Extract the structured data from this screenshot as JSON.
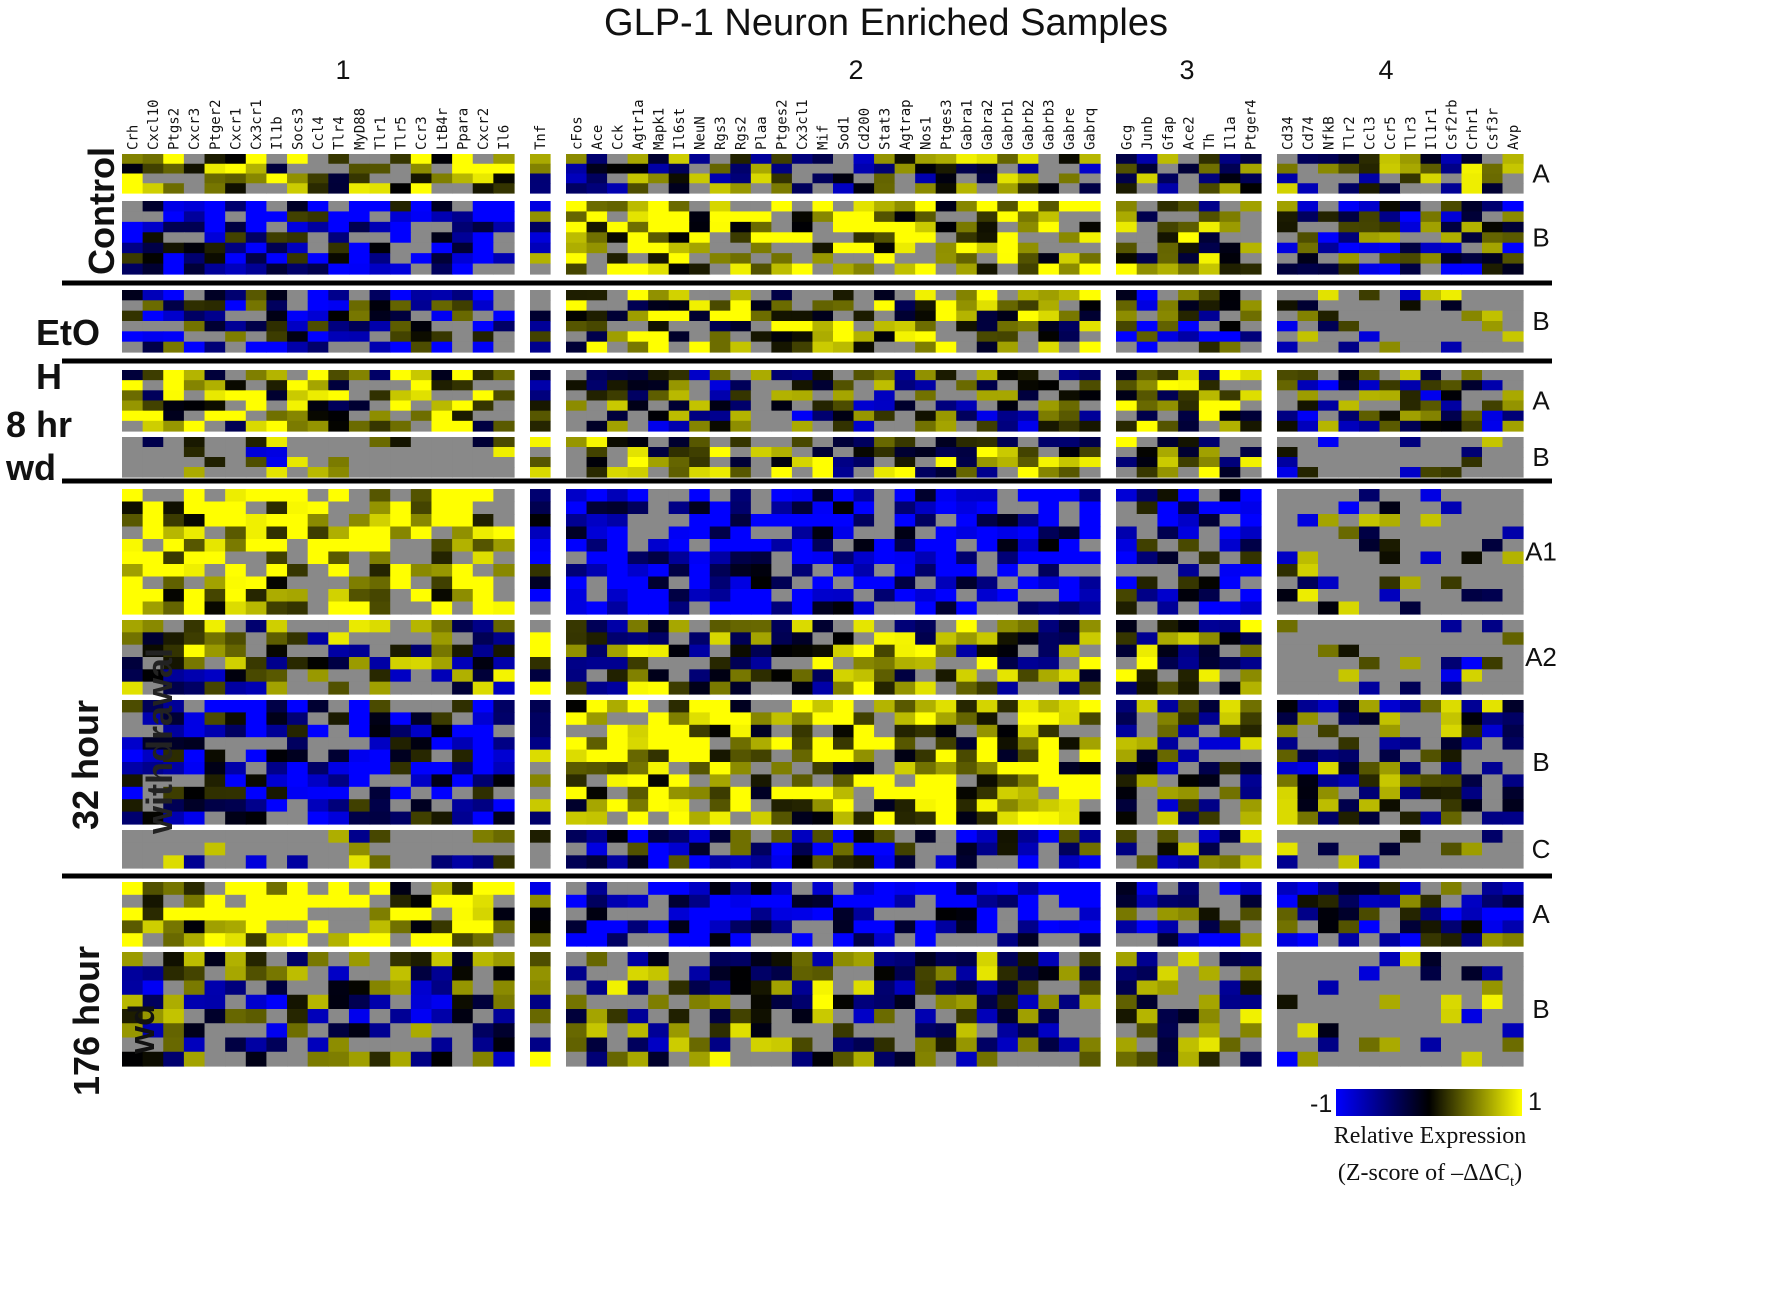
{
  "title": "GLP-1 Neuron Enriched Samples",
  "colors": {
    "low": "#0000ff",
    "mid": "#000000",
    "high": "#ffff00",
    "missing": "#898989"
  },
  "chart_data": {
    "type": "heatmap",
    "title": "GLP-1 Neuron Enriched Samples",
    "value_range": [
      -1,
      1
    ],
    "gene_groups": [
      {
        "label": "1",
        "genes": [
          "Crh",
          "Cxcl10",
          "Ptgs2",
          "Cxcr3",
          "Ptger2",
          "Cxcr1",
          "Cx3cr1",
          "Il1b",
          "Socs3",
          "Ccl4",
          "Tlr4",
          "MyD88",
          "Tlr1",
          "Tlr5",
          "Ccr3",
          "LtB4r",
          "Ppara",
          "Cxcr2",
          "Il6"
        ]
      },
      {
        "label": "",
        "genes": [
          "Tnf"
        ]
      },
      {
        "label": "2",
        "genes": [
          "cFos",
          "Ace",
          "Cck",
          "Agtr1a",
          "Mapk1",
          "Il6st",
          "NeuN",
          "Rgs3",
          "Rgs2",
          "Plaa",
          "Ptges2",
          "Cx3cl1",
          "Mif",
          "Sod1",
          "Cd200",
          "Stat3",
          "Agtrap",
          "Nos1",
          "Ptges3",
          "Gabra1",
          "Gabra2",
          "Gabrb1",
          "Gabrb2",
          "Gabrb3",
          "Gabre",
          "Gabrq"
        ]
      },
      {
        "label": "3",
        "genes": [
          "Gcg",
          "Junb",
          "Gfap",
          "Ace2",
          "Th",
          "Il1a",
          "Ptger4"
        ]
      },
      {
        "label": "4",
        "genes": [
          "Cd34",
          "Cd74",
          "NfkB",
          "Tlr2",
          "Ccl3",
          "Ccr5",
          "Tlr3",
          "Il1r1",
          "Csf2rb",
          "Crhr1",
          "Csf3r",
          "Avp"
        ]
      }
    ],
    "conditions": [
      {
        "label": "Control",
        "clusters": [
          {
            "label": "A",
            "samples": 4
          },
          {
            "label": "B",
            "samples": 7
          }
        ]
      },
      {
        "label": "EtOH",
        "clusters": [
          {
            "label": "B",
            "samples": 6
          }
        ]
      },
      {
        "label": "8 hr wd",
        "clusters": [
          {
            "label": "A",
            "samples": 6
          },
          {
            "label": "B",
            "samples": 4
          }
        ]
      },
      {
        "label": "32 hour withdrawal",
        "clusters": [
          {
            "label": "A1",
            "samples": 10
          },
          {
            "label": "A2",
            "samples": 6
          },
          {
            "label": "B",
            "samples": 10
          },
          {
            "label": "C",
            "samples": 3
          }
        ]
      },
      {
        "label": "176 hour wd",
        "clusters": [
          {
            "label": "A",
            "samples": 5
          },
          {
            "label": "B",
            "samples": 8
          }
        ]
      }
    ],
    "pattern_seed": 7,
    "colorbar": {
      "min_label": "-1",
      "max_label": "1",
      "caption_line1": "Relative Expression",
      "caption_line2": "(Z-score of –ΔΔC",
      "caption_sub": "t",
      "caption_end": ")"
    }
  },
  "condition_labels": {
    "control": "Control",
    "etoh_a": "EtO",
    "etoh_b": "H",
    "hr8_a": "8 hr",
    "hr8_b": "wd",
    "h32_a": "32 hour",
    "h32_b": "withdrawal",
    "h176_a": "176 hour",
    "h176_b": "wd"
  }
}
